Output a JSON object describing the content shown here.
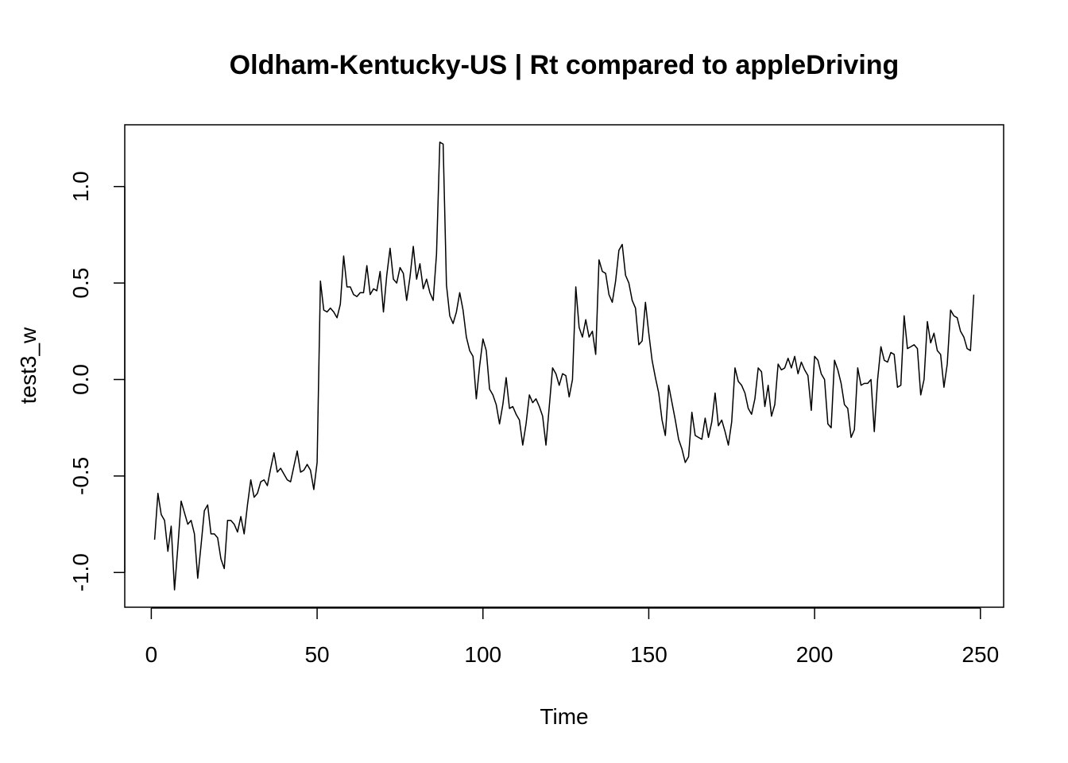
{
  "chart_data": {
    "type": "line",
    "title": "Oldham-Kentucky-US | Rt compared to appleDriving",
    "xlabel": "Time",
    "ylabel": "test3_w",
    "xlim": [
      -8,
      257
    ],
    "ylim": [
      -1.18,
      1.32
    ],
    "x_ticks": [
      0,
      50,
      100,
      150,
      200,
      250
    ],
    "y_ticks": [
      -1.0,
      -0.5,
      0.0,
      0.5,
      1.0
    ],
    "x_tick_labels": [
      "0",
      "50",
      "100",
      "150",
      "200",
      "250"
    ],
    "y_tick_labels": [
      "-1.0",
      "-0.5",
      "0.0",
      "0.5",
      "1.0"
    ],
    "grid": false,
    "legend": "none",
    "line_color": "#000000",
    "x_start": 1,
    "values": [
      -0.83,
      -0.59,
      -0.7,
      -0.73,
      -0.89,
      -0.76,
      -1.09,
      -0.87,
      -0.63,
      -0.69,
      -0.75,
      -0.73,
      -0.8,
      -1.03,
      -0.86,
      -0.68,
      -0.65,
      -0.8,
      -0.8,
      -0.82,
      -0.93,
      -0.98,
      -0.73,
      -0.73,
      -0.75,
      -0.79,
      -0.71,
      -0.8,
      -0.65,
      -0.52,
      -0.61,
      -0.59,
      -0.53,
      -0.52,
      -0.55,
      -0.46,
      -0.38,
      -0.48,
      -0.46,
      -0.49,
      -0.52,
      -0.53,
      -0.45,
      -0.37,
      -0.48,
      -0.47,
      -0.44,
      -0.47,
      -0.57,
      -0.43,
      0.51,
      0.36,
      0.35,
      0.37,
      0.35,
      0.32,
      0.39,
      0.64,
      0.48,
      0.48,
      0.44,
      0.43,
      0.45,
      0.45,
      0.59,
      0.44,
      0.47,
      0.46,
      0.56,
      0.35,
      0.54,
      0.68,
      0.52,
      0.5,
      0.58,
      0.55,
      0.41,
      0.53,
      0.69,
      0.52,
      0.6,
      0.47,
      0.52,
      0.45,
      0.41,
      0.65,
      1.23,
      1.22,
      0.49,
      0.33,
      0.29,
      0.35,
      0.45,
      0.36,
      0.22,
      0.15,
      0.12,
      -0.1,
      0.07,
      0.21,
      0.15,
      -0.05,
      -0.08,
      -0.13,
      -0.23,
      -0.13,
      0.01,
      -0.15,
      -0.14,
      -0.18,
      -0.21,
      -0.34,
      -0.23,
      -0.08,
      -0.12,
      -0.1,
      -0.14,
      -0.19,
      -0.34,
      -0.14,
      0.06,
      0.03,
      -0.03,
      0.03,
      0.02,
      -0.09,
      0.0,
      0.48,
      0.27,
      0.22,
      0.31,
      0.22,
      0.25,
      0.13,
      0.62,
      0.56,
      0.55,
      0.44,
      0.4,
      0.51,
      0.67,
      0.7,
      0.54,
      0.5,
      0.41,
      0.37,
      0.18,
      0.2,
      0.4,
      0.24,
      0.1,
      0.01,
      -0.07,
      -0.21,
      -0.29,
      -0.03,
      -0.12,
      -0.21,
      -0.31,
      -0.36,
      -0.43,
      -0.4,
      -0.17,
      -0.29,
      -0.3,
      -0.31,
      -0.2,
      -0.3,
      -0.22,
      -0.07,
      -0.24,
      -0.21,
      -0.27,
      -0.34,
      -0.22,
      0.06,
      -0.01,
      -0.03,
      -0.07,
      -0.15,
      -0.18,
      -0.1,
      0.06,
      0.04,
      -0.14,
      -0.03,
      -0.19,
      -0.13,
      0.08,
      0.05,
      0.06,
      0.11,
      0.06,
      0.12,
      0.03,
      0.09,
      0.05,
      0.02,
      -0.16,
      0.12,
      0.1,
      0.03,
      0.0,
      -0.23,
      -0.25,
      0.1,
      0.05,
      -0.02,
      -0.13,
      -0.15,
      -0.3,
      -0.26,
      0.06,
      -0.03,
      -0.02,
      -0.02,
      0.0,
      -0.27,
      0.0,
      0.17,
      0.1,
      0.09,
      0.14,
      0.13,
      -0.04,
      -0.03,
      0.33,
      0.16,
      0.17,
      0.18,
      0.16,
      -0.08,
      0.0,
      0.3,
      0.19,
      0.24,
      0.15,
      0.13,
      -0.04,
      0.08,
      0.36,
      0.33,
      0.32,
      0.25,
      0.22,
      0.16,
      0.15,
      0.44
    ]
  }
}
